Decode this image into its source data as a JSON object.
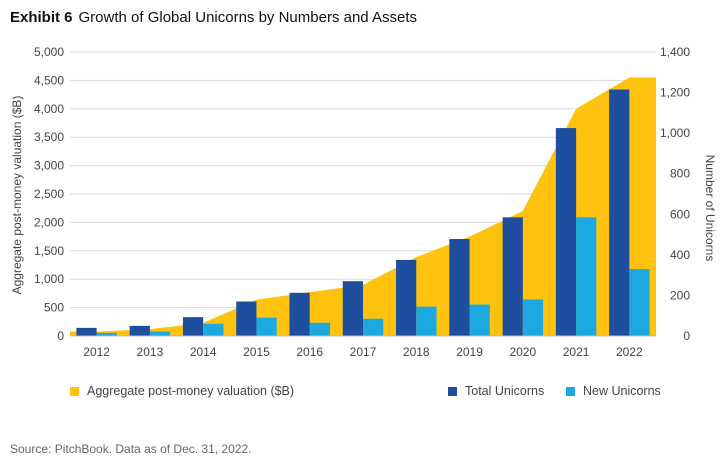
{
  "header": {
    "exhibit_label": "Exhibit 6",
    "title": "Growth of Global Unicorns by Numbers and Assets"
  },
  "footer": {
    "source": "Source: PitchBook. Data as of Dec. 31, 2022."
  },
  "colors": {
    "area": "#FFC20E",
    "total": "#1F4E9E",
    "new": "#1BA9DF",
    "grid": "#d9d9d9"
  },
  "chart_data": {
    "type": "bar",
    "categories": [
      "2012",
      "2013",
      "2014",
      "2015",
      "2016",
      "2017",
      "2018",
      "2019",
      "2020",
      "2021",
      "2022"
    ],
    "area": {
      "name": "Aggregate post-money valuation ($B)",
      "axis": "left",
      "values": [
        80,
        120,
        230,
        640,
        770,
        900,
        1390,
        1750,
        2200,
        4000,
        4550
      ]
    },
    "series": [
      {
        "name": "Total Unicorns",
        "axis": "right",
        "values": [
          40,
          50,
          93,
          170,
          213,
          270,
          375,
          478,
          585,
          1025,
          1215
        ]
      },
      {
        "name": "New Unicorns",
        "axis": "right",
        "values": [
          15,
          22,
          60,
          90,
          65,
          85,
          145,
          155,
          180,
          585,
          330
        ]
      }
    ],
    "left_axis": {
      "label": "Aggregate post-money valuation ($B)",
      "ylim": [
        0,
        5000
      ],
      "ticks": [
        "0",
        "500",
        "1,000",
        "1,500",
        "2,000",
        "2,500",
        "3,000",
        "3,500",
        "4,000",
        "4,500",
        "5,000"
      ]
    },
    "right_axis": {
      "label": "Number of Unicorns",
      "ylim": [
        0,
        1400
      ],
      "ticks": [
        "0",
        "200",
        "400",
        "600",
        "800",
        "1,000",
        "1,200",
        "1,400"
      ]
    },
    "grid": true,
    "legend_position": "bottom"
  }
}
